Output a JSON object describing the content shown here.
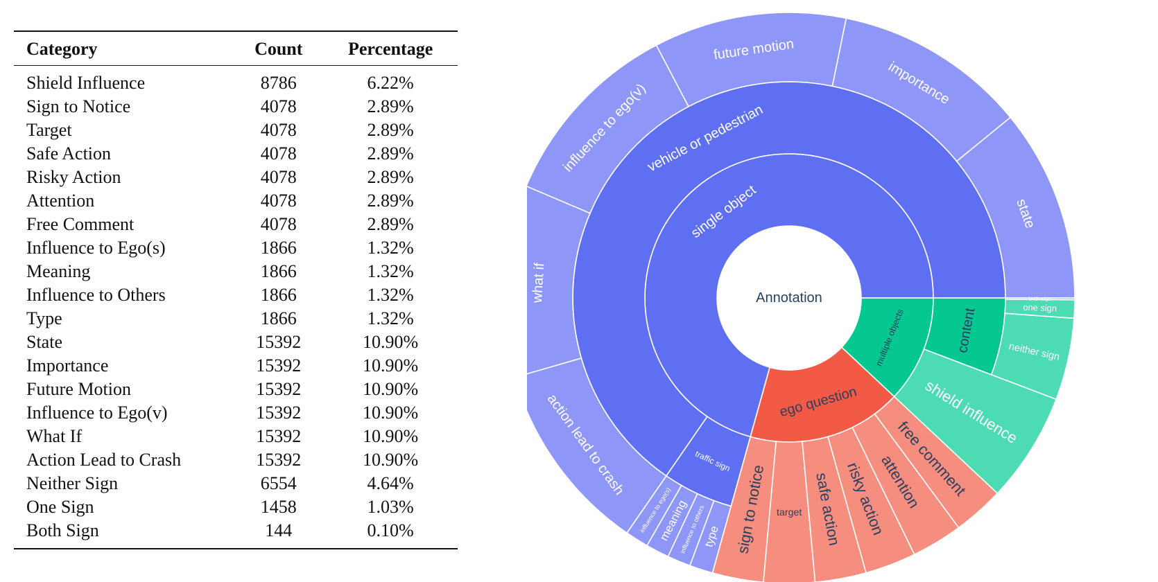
{
  "table": {
    "headers": [
      "Category",
      "Count",
      "Percentage"
    ],
    "rows": [
      {
        "category": "Shield Influence",
        "count": "8786",
        "percentage": "6.22%"
      },
      {
        "category": "Sign to Notice",
        "count": "4078",
        "percentage": "2.89%"
      },
      {
        "category": "Target",
        "count": "4078",
        "percentage": "2.89%"
      },
      {
        "category": "Safe Action",
        "count": "4078",
        "percentage": "2.89%"
      },
      {
        "category": "Risky Action",
        "count": "4078",
        "percentage": "2.89%"
      },
      {
        "category": "Attention",
        "count": "4078",
        "percentage": "2.89%"
      },
      {
        "category": "Free Comment",
        "count": "4078",
        "percentage": "2.89%"
      },
      {
        "category": "Influence to Ego(s)",
        "count": "1866",
        "percentage": "1.32%"
      },
      {
        "category": "Meaning",
        "count": "1866",
        "percentage": "1.32%"
      },
      {
        "category": "Influence to Others",
        "count": "1866",
        "percentage": "1.32%"
      },
      {
        "category": "Type",
        "count": "1866",
        "percentage": "1.32%"
      },
      {
        "category": "State",
        "count": "15392",
        "percentage": "10.90%"
      },
      {
        "category": "Importance",
        "count": "15392",
        "percentage": "10.90%"
      },
      {
        "category": "Future Motion",
        "count": "15392",
        "percentage": "10.90%"
      },
      {
        "category": "Influence to Ego(v)",
        "count": "15392",
        "percentage": "10.90%"
      },
      {
        "category": "What If",
        "count": "15392",
        "percentage": "10.90%"
      },
      {
        "category": "Action Lead to Crash",
        "count": "15392",
        "percentage": "10.90%"
      },
      {
        "category": "Neither Sign",
        "count": "6554",
        "percentage": "4.64%"
      },
      {
        "category": "One Sign",
        "count": "1458",
        "percentage": "1.03%"
      },
      {
        "category": "Both Sign",
        "count": "144",
        "percentage": "0.10%"
      }
    ]
  },
  "chart_data": {
    "type": "sunburst",
    "colors": {
      "blue_dark": "#5e6ff2",
      "blue_light": "#8e97f7",
      "red_dark": "#f25a46",
      "red_light": "#f68e80",
      "green_dark": "#05c790",
      "green_light": "#4ddbb4",
      "center_text": "#2a3f5f"
    },
    "root": {
      "label": "Annotation",
      "children": [
        {
          "label": "single object",
          "color": "blue_dark",
          "children": [
            {
              "label": "vehicle or pedestrian",
              "color": "blue_dark",
              "children": [
                {
                  "label": "state",
                  "value": 15392,
                  "color": "blue_light"
                },
                {
                  "label": "importance",
                  "value": 15392,
                  "color": "blue_light"
                },
                {
                  "label": "future motion",
                  "value": 15392,
                  "color": "blue_light"
                },
                {
                  "label": "influence to ego(v)",
                  "value": 15392,
                  "color": "blue_light"
                },
                {
                  "label": "what if",
                  "value": 15392,
                  "color": "blue_light"
                },
                {
                  "label": "action lead to crash",
                  "value": 15392,
                  "color": "blue_light"
                }
              ]
            },
            {
              "label": "traffic sign",
              "color": "blue_dark",
              "children": [
                {
                  "label": "influence to ego(s)",
                  "value": 1866,
                  "color": "blue_light"
                },
                {
                  "label": "meaning",
                  "value": 1866,
                  "color": "blue_light"
                },
                {
                  "label": "influence to others",
                  "value": 1866,
                  "color": "blue_light"
                },
                {
                  "label": "type",
                  "value": 1866,
                  "color": "blue_light"
                }
              ]
            }
          ]
        },
        {
          "label": "ego question",
          "color": "red_dark",
          "children": [
            {
              "label": "sign to notice",
              "value": 4078,
              "color": "red_light"
            },
            {
              "label": "target",
              "value": 4078,
              "color": "red_light"
            },
            {
              "label": "safe action",
              "value": 4078,
              "color": "red_light"
            },
            {
              "label": "risky action",
              "value": 4078,
              "color": "red_light"
            },
            {
              "label": "attention",
              "value": 4078,
              "color": "red_light"
            },
            {
              "label": "free comment",
              "value": 4078,
              "color": "red_light"
            }
          ]
        },
        {
          "label": "multiple objects",
          "color": "green_dark",
          "children": [
            {
              "label": "shield influence",
              "value": 8786,
              "color": "green_light"
            },
            {
              "label": "content",
              "color": "green_dark",
              "children": [
                {
                  "label": "neither sign",
                  "value": 6554,
                  "color": "green_light"
                },
                {
                  "label": "one sign",
                  "value": 1458,
                  "color": "green_light"
                },
                {
                  "label": "both sign",
                  "value": 144,
                  "color": "green_light"
                }
              ]
            }
          ]
        }
      ]
    }
  }
}
